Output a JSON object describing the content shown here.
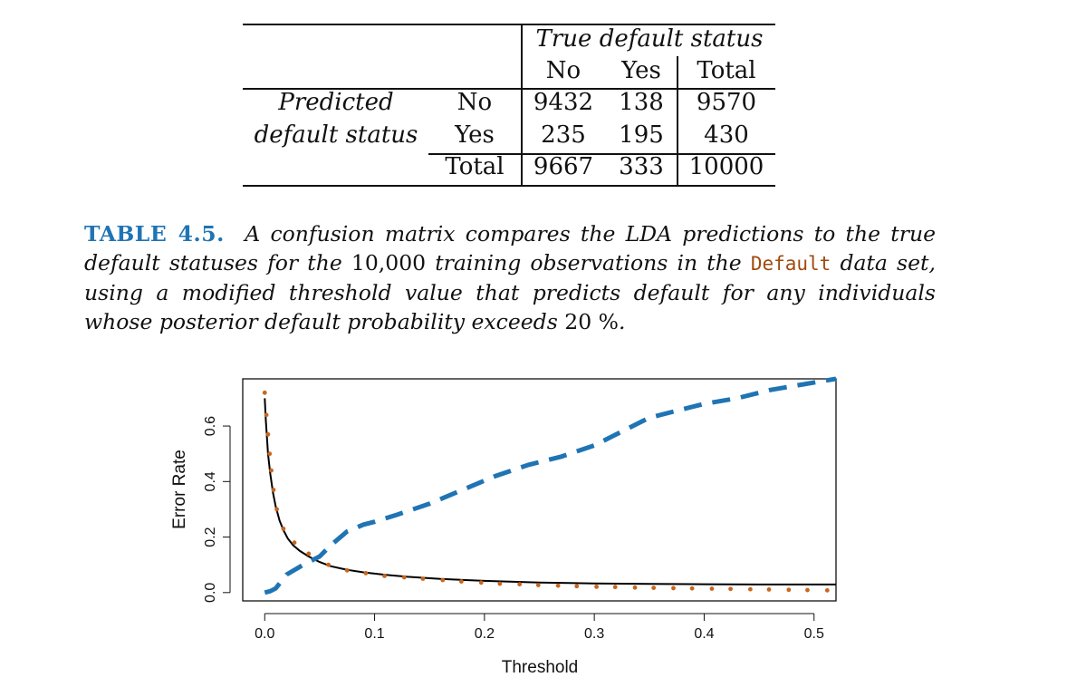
{
  "table": {
    "column_group_header": "True default status",
    "column_headers": [
      "No",
      "Yes",
      "Total"
    ],
    "row_group_header": [
      "Predicted",
      "default status"
    ],
    "rows": [
      {
        "label": "No",
        "values": [
          "9432",
          "138",
          "9570"
        ]
      },
      {
        "label": "Yes",
        "values": [
          "235",
          "195",
          "430"
        ]
      },
      {
        "label": "Total",
        "values": [
          "9667",
          "333",
          "10000"
        ]
      }
    ]
  },
  "caption": {
    "label": "TABLE 4.5.",
    "part1": "A confusion matrix compares the LDA predictions to the true default statuses for the",
    "num": "10,000",
    "part2": "training observations in the",
    "code": "Default",
    "part3": "data set, using a modified threshold value that predicts default for any individuals whose posterior default probability exceeds",
    "pct": "20 %",
    "end": "."
  },
  "chart_data": {
    "type": "line",
    "xlabel": "Threshold",
    "ylabel": "Error Rate",
    "xlim": [
      -0.02,
      0.52
    ],
    "ylim": [
      -0.03,
      0.77
    ],
    "x_ticks": [
      "0.0",
      "0.1",
      "0.2",
      "0.3",
      "0.4",
      "0.5"
    ],
    "y_ticks": [
      "0.0",
      "0.2",
      "0.4",
      "0.6"
    ],
    "x_tick_values": [
      0.0,
      0.1,
      0.2,
      0.3,
      0.4,
      0.5
    ],
    "y_tick_values": [
      0.0,
      0.2,
      0.4,
      0.6
    ],
    "series": [
      {
        "style": "solid",
        "color": "#000000",
        "points": [
          [
            0.0,
            0.7
          ],
          [
            0.001,
            0.62
          ],
          [
            0.002,
            0.56
          ],
          [
            0.003,
            0.5
          ],
          [
            0.005,
            0.43
          ],
          [
            0.0075,
            0.36
          ],
          [
            0.01,
            0.31
          ],
          [
            0.0135,
            0.26
          ],
          [
            0.017,
            0.225
          ],
          [
            0.021,
            0.195
          ],
          [
            0.026,
            0.17
          ],
          [
            0.032,
            0.15
          ],
          [
            0.04,
            0.13
          ],
          [
            0.05,
            0.11
          ],
          [
            0.06,
            0.095
          ],
          [
            0.075,
            0.082
          ],
          [
            0.09,
            0.073
          ],
          [
            0.11,
            0.064
          ],
          [
            0.13,
            0.057
          ],
          [
            0.16,
            0.049
          ],
          [
            0.2,
            0.042
          ],
          [
            0.25,
            0.036
          ],
          [
            0.3,
            0.033
          ],
          [
            0.35,
            0.031
          ],
          [
            0.4,
            0.03
          ],
          [
            0.45,
            0.029
          ],
          [
            0.52,
            0.029
          ]
        ]
      },
      {
        "style": "dashed",
        "color": "#1f74b4",
        "points": [
          [
            0.0,
            0.0
          ],
          [
            0.005,
            0.005
          ],
          [
            0.01,
            0.015
          ],
          [
            0.02,
            0.065
          ],
          [
            0.035,
            0.1
          ],
          [
            0.05,
            0.13
          ],
          [
            0.06,
            0.17
          ],
          [
            0.075,
            0.22
          ],
          [
            0.09,
            0.245
          ],
          [
            0.1,
            0.255
          ],
          [
            0.12,
            0.28
          ],
          [
            0.15,
            0.32
          ],
          [
            0.18,
            0.37
          ],
          [
            0.21,
            0.42
          ],
          [
            0.24,
            0.46
          ],
          [
            0.27,
            0.49
          ],
          [
            0.3,
            0.53
          ],
          [
            0.33,
            0.59
          ],
          [
            0.35,
            0.63
          ],
          [
            0.38,
            0.66
          ],
          [
            0.4,
            0.68
          ],
          [
            0.43,
            0.7
          ],
          [
            0.46,
            0.73
          ],
          [
            0.49,
            0.75
          ],
          [
            0.52,
            0.77
          ]
        ]
      },
      {
        "style": "dotted",
        "color": "#c8661e",
        "points": [
          [
            0.0,
            0.72
          ],
          [
            0.0015,
            0.64
          ],
          [
            0.003,
            0.57
          ],
          [
            0.0045,
            0.5
          ],
          [
            0.006,
            0.44
          ],
          [
            0.008,
            0.37
          ],
          [
            0.011,
            0.3
          ],
          [
            0.017,
            0.23
          ],
          [
            0.027,
            0.18
          ],
          [
            0.04,
            0.14
          ],
          [
            0.058,
            0.1
          ],
          [
            0.075,
            0.08
          ],
          [
            0.092,
            0.07
          ],
          [
            0.109,
            0.06
          ],
          [
            0.127,
            0.055
          ],
          [
            0.144,
            0.05
          ],
          [
            0.162,
            0.045
          ],
          [
            0.179,
            0.04
          ],
          [
            0.197,
            0.036
          ],
          [
            0.214,
            0.032
          ],
          [
            0.232,
            0.03
          ],
          [
            0.249,
            0.027
          ],
          [
            0.267,
            0.025
          ],
          [
            0.284,
            0.023
          ],
          [
            0.302,
            0.021
          ],
          [
            0.319,
            0.02
          ],
          [
            0.337,
            0.018
          ],
          [
            0.354,
            0.017
          ],
          [
            0.372,
            0.016
          ],
          [
            0.389,
            0.015
          ],
          [
            0.407,
            0.014
          ],
          [
            0.424,
            0.013
          ],
          [
            0.442,
            0.012
          ],
          [
            0.459,
            0.011
          ],
          [
            0.477,
            0.01
          ],
          [
            0.494,
            0.009
          ],
          [
            0.512,
            0.008
          ]
        ]
      }
    ]
  }
}
